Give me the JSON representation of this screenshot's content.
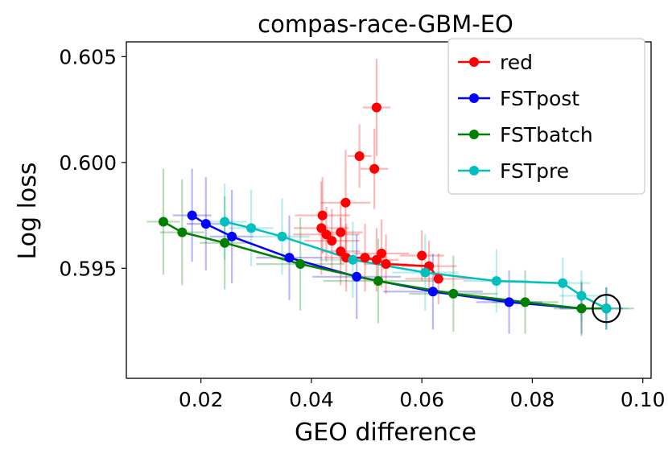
{
  "chart_data": {
    "type": "line",
    "title": "compas-race-GBM-EO",
    "xlabel": "GEO difference",
    "ylabel": "Log loss",
    "xlim": [
      0.0065,
      0.1015
    ],
    "ylim": [
      0.5898,
      0.6057
    ],
    "xticks": [
      0.02,
      0.04,
      0.06,
      0.08,
      0.1
    ],
    "xtick_labels": [
      "0.02",
      "0.04",
      "0.06",
      "0.08",
      "0.10"
    ],
    "yticks": [
      0.595,
      0.6,
      0.605
    ],
    "ytick_labels": [
      "0.595",
      "0.600",
      "0.605"
    ],
    "grid": false,
    "legend_position": "top-right",
    "highlight": {
      "x": 0.0934,
      "y": 0.5931,
      "shape": "circle"
    },
    "series": [
      {
        "name": "red",
        "color": "#ff0000",
        "connected_from": 12,
        "points": [
          {
            "x": 0.0518,
            "y": 0.6026,
            "xerr": 0.0025,
            "yerr": 0.0023
          },
          {
            "x": 0.0487,
            "y": 0.6003,
            "xerr": 0.0022,
            "yerr": 0.0015
          },
          {
            "x": 0.0514,
            "y": 0.5997,
            "xerr": 0.0025,
            "yerr": 0.0019
          },
          {
            "x": 0.0462,
            "y": 0.5981,
            "xerr": 0.0045,
            "yerr": 0.0025
          },
          {
            "x": 0.042,
            "y": 0.5975,
            "xerr": 0.005,
            "yerr": 0.0018
          },
          {
            "x": 0.0418,
            "y": 0.5969,
            "xerr": 0.005,
            "yerr": 0.0022
          },
          {
            "x": 0.0453,
            "y": 0.5967,
            "xerr": 0.004,
            "yerr": 0.0015
          },
          {
            "x": 0.0427,
            "y": 0.5966,
            "xerr": 0.006,
            "yerr": 0.0013
          },
          {
            "x": 0.0437,
            "y": 0.5963,
            "xerr": 0.005,
            "yerr": 0.0015
          },
          {
            "x": 0.0453,
            "y": 0.5958,
            "xerr": 0.0035,
            "yerr": 0.0016
          },
          {
            "x": 0.0527,
            "y": 0.5957,
            "xerr": 0.005,
            "yerr": 0.0016
          },
          {
            "x": 0.06,
            "y": 0.5956,
            "xerr": 0.004,
            "yerr": 0.0012
          },
          {
            "x": 0.0463,
            "y": 0.5955,
            "xerr": 0.004,
            "yerr": 0.0016
          },
          {
            "x": 0.0497,
            "y": 0.5955,
            "xerr": 0.004,
            "yerr": 0.0016
          },
          {
            "x": 0.0518,
            "y": 0.5954,
            "xerr": 0.004,
            "yerr": 0.0015
          },
          {
            "x": 0.0535,
            "y": 0.5952,
            "xerr": 0.004,
            "yerr": 0.0014
          },
          {
            "x": 0.0613,
            "y": 0.5951,
            "xerr": 0.005,
            "yerr": 0.0012
          },
          {
            "x": 0.063,
            "y": 0.5945,
            "xerr": 0.006,
            "yerr": 0.0012
          }
        ]
      },
      {
        "name": "FSTpost",
        "color": "#0000ff",
        "connected_from": 0,
        "points": [
          {
            "x": 0.0184,
            "y": 0.5975,
            "xerr": 0.0035,
            "yerr": 0.0022
          },
          {
            "x": 0.0209,
            "y": 0.5971,
            "xerr": 0.0035,
            "yerr": 0.0022
          },
          {
            "x": 0.0256,
            "y": 0.5965,
            "xerr": 0.004,
            "yerr": 0.0022
          },
          {
            "x": 0.036,
            "y": 0.5955,
            "xerr": 0.006,
            "yerr": 0.002
          },
          {
            "x": 0.0482,
            "y": 0.5946,
            "xerr": 0.008,
            "yerr": 0.002
          },
          {
            "x": 0.062,
            "y": 0.5939,
            "xerr": 0.009,
            "yerr": 0.0018
          },
          {
            "x": 0.0758,
            "y": 0.5934,
            "xerr": 0.006,
            "yerr": 0.0015
          },
          {
            "x": 0.0889,
            "y": 0.5931,
            "xerr": 0.004,
            "yerr": 0.0012
          },
          {
            "x": 0.0934,
            "y": 0.5931,
            "xerr": 0.003,
            "yerr": 0.001
          }
        ]
      },
      {
        "name": "FSTbatch",
        "color": "#008000",
        "connected_from": 0,
        "points": [
          {
            "x": 0.0132,
            "y": 0.5972,
            "xerr": 0.003,
            "yerr": 0.0025
          },
          {
            "x": 0.0166,
            "y": 0.5967,
            "xerr": 0.004,
            "yerr": 0.0025
          },
          {
            "x": 0.0243,
            "y": 0.5962,
            "xerr": 0.0045,
            "yerr": 0.0022
          },
          {
            "x": 0.038,
            "y": 0.5952,
            "xerr": 0.008,
            "yerr": 0.0022
          },
          {
            "x": 0.0521,
            "y": 0.5944,
            "xerr": 0.01,
            "yerr": 0.002
          },
          {
            "x": 0.0657,
            "y": 0.5938,
            "xerr": 0.008,
            "yerr": 0.0018
          },
          {
            "x": 0.0787,
            "y": 0.5934,
            "xerr": 0.006,
            "yerr": 0.0015
          },
          {
            "x": 0.0889,
            "y": 0.5931,
            "xerr": 0.005,
            "yerr": 0.0013
          },
          {
            "x": 0.0934,
            "y": 0.5931,
            "xerr": 0.005,
            "yerr": 0.001
          }
        ]
      },
      {
        "name": "FSTpre",
        "color": "#00bfbf",
        "connected_from": 0,
        "points": [
          {
            "x": 0.0243,
            "y": 0.5972,
            "xerr": 0.004,
            "yerr": 0.0018
          },
          {
            "x": 0.0291,
            "y": 0.5969,
            "xerr": 0.004,
            "yerr": 0.0018
          },
          {
            "x": 0.0347,
            "y": 0.5965,
            "xerr": 0.005,
            "yerr": 0.0018
          },
          {
            "x": 0.0475,
            "y": 0.5954,
            "xerr": 0.006,
            "yerr": 0.0018
          },
          {
            "x": 0.0606,
            "y": 0.5948,
            "xerr": 0.006,
            "yerr": 0.0018
          },
          {
            "x": 0.0735,
            "y": 0.5944,
            "xerr": 0.006,
            "yerr": 0.0015
          },
          {
            "x": 0.0855,
            "y": 0.5943,
            "xerr": 0.005,
            "yerr": 0.0012
          },
          {
            "x": 0.0889,
            "y": 0.5937,
            "xerr": 0.004,
            "yerr": 0.0012
          },
          {
            "x": 0.0934,
            "y": 0.5931,
            "xerr": 0.004,
            "yerr": 0.001
          }
        ]
      }
    ]
  }
}
